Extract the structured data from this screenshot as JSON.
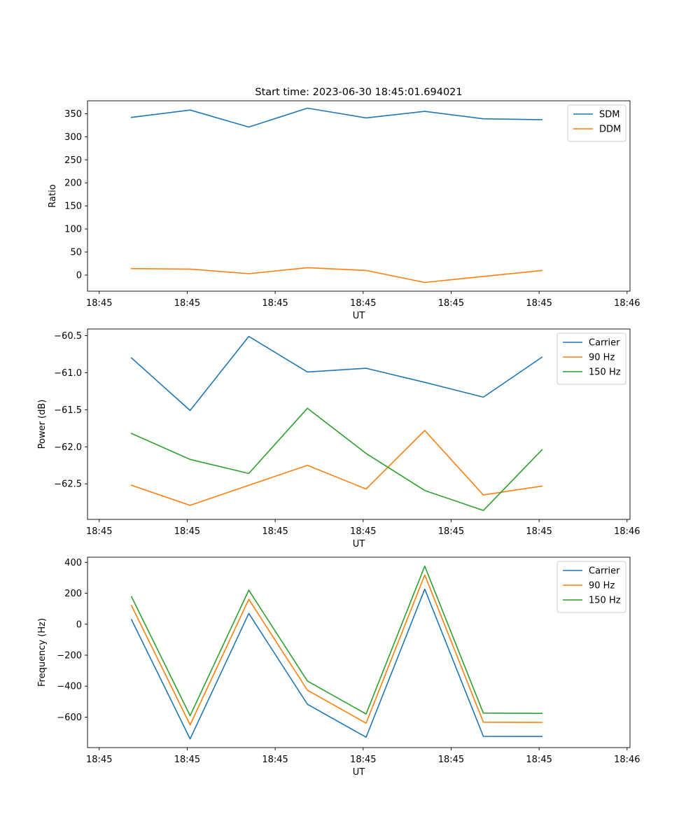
{
  "chart_data": [
    {
      "type": "line",
      "title": "Start time: 2023-06-30 18:45:01.694021",
      "xlabel": "UT",
      "ylabel": "Ratio",
      "ylim": [
        -35,
        378
      ],
      "yticks": [
        0,
        50,
        100,
        150,
        200,
        250,
        300,
        350
      ],
      "ytick_labels": [
        "0",
        "50",
        "100",
        "150",
        "200",
        "250",
        "300",
        "350"
      ],
      "xlim": [
        -0.75,
        8.5
      ],
      "xticks": [
        -0.55,
        0.95,
        2.45,
        3.95,
        5.45,
        6.95,
        8.45
      ],
      "xtick_labels": [
        "18:45",
        "18:45",
        "18:45",
        "18:45",
        "18:45",
        "18:45",
        "18:46"
      ],
      "legend": "top-right",
      "grid": false,
      "x": [
        0,
        1,
        2,
        3,
        4,
        5,
        6,
        7
      ],
      "series": [
        {
          "name": "SDM",
          "color": "#1f77b4",
          "values": [
            342,
            358,
            321,
            362,
            341,
            355,
            339,
            337
          ]
        },
        {
          "name": "DDM",
          "color": "#ff7f0e",
          "values": [
            14,
            13,
            3,
            16,
            10,
            -16,
            -3,
            10
          ]
        }
      ]
    },
    {
      "type": "line",
      "title": "",
      "xlabel": "UT",
      "ylabel": "Power (dB)",
      "ylim": [
        -62.98,
        -60.41
      ],
      "yticks": [
        -62.5,
        -62.0,
        -61.5,
        -61.0,
        -60.5
      ],
      "ytick_labels": [
        "−62.5",
        "−62.0",
        "−61.5",
        "−61.0",
        "−60.5"
      ],
      "xlim": [
        -0.75,
        8.5
      ],
      "xticks": [
        -0.55,
        0.95,
        2.45,
        3.95,
        5.45,
        6.95,
        8.45
      ],
      "xtick_labels": [
        "18:45",
        "18:45",
        "18:45",
        "18:45",
        "18:45",
        "18:45",
        "18:46"
      ],
      "legend": "top-right",
      "grid": false,
      "x": [
        0,
        1,
        2,
        3,
        4,
        5,
        6,
        7
      ],
      "series": [
        {
          "name": "Carrier",
          "color": "#1f77b4",
          "values": [
            -60.8,
            -61.51,
            -60.51,
            -60.99,
            -60.94,
            -61.13,
            -61.33,
            -60.79
          ]
        },
        {
          "name": "90 Hz",
          "color": "#ff7f0e",
          "values": [
            -62.52,
            -62.79,
            -62.52,
            -62.25,
            -62.57,
            -61.78,
            -62.65,
            -62.53
          ]
        },
        {
          "name": "150 Hz",
          "color": "#2ca02c",
          "values": [
            -61.82,
            -62.17,
            -62.36,
            -61.48,
            -62.09,
            -62.59,
            -62.86,
            -62.04
          ]
        }
      ]
    },
    {
      "type": "line",
      "title": "",
      "xlabel": "UT",
      "ylabel": "Frequency (Hz)",
      "ylim": [
        -797,
        433
      ],
      "yticks": [
        -600,
        -400,
        -200,
        0,
        200,
        400
      ],
      "ytick_labels": [
        "−600",
        "−400",
        "−200",
        "0",
        "200",
        "400"
      ],
      "xlim": [
        -0.75,
        8.5
      ],
      "xticks": [
        -0.55,
        0.95,
        2.45,
        3.95,
        5.45,
        6.95,
        8.45
      ],
      "xtick_labels": [
        "18:45",
        "18:45",
        "18:45",
        "18:45",
        "18:45",
        "18:45",
        "18:46"
      ],
      "legend": "top-right",
      "grid": false,
      "x": [
        0,
        1,
        2,
        3,
        4,
        5,
        6,
        7
      ],
      "series": [
        {
          "name": "Carrier",
          "color": "#1f77b4",
          "values": [
            30,
            -741,
            70,
            -517,
            -730,
            227,
            -724,
            -725
          ]
        },
        {
          "name": "90 Hz",
          "color": "#ff7f0e",
          "values": [
            121,
            -650,
            161,
            -426,
            -639,
            318,
            -633,
            -634
          ]
        },
        {
          "name": "150 Hz",
          "color": "#2ca02c",
          "values": [
            178,
            -591,
            220,
            -367,
            -580,
            375,
            -574,
            -576
          ]
        }
      ]
    }
  ]
}
